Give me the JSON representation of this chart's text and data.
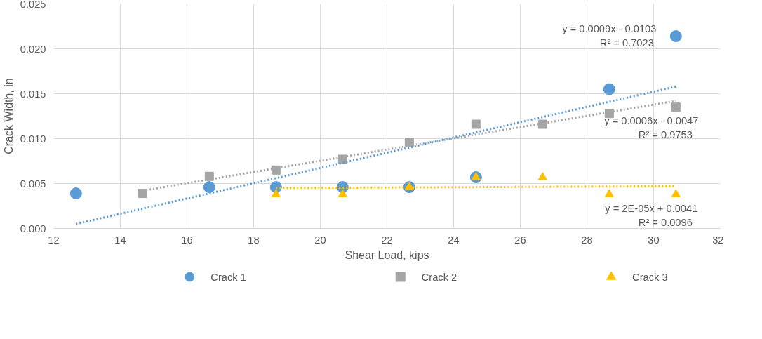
{
  "chart_data": {
    "type": "scatter",
    "xlabel": "Shear Load, kips",
    "ylabel": "Crack Width, in",
    "xlim": [
      12,
      32
    ],
    "xticks": [
      12,
      14,
      16,
      18,
      20,
      22,
      24,
      26,
      28,
      30,
      32
    ],
    "ylim": [
      0,
      0.025
    ],
    "yticks": [
      {
        "value": 0,
        "label": "0.000"
      },
      {
        "value": 0.005,
        "label": "0.005"
      },
      {
        "value": 0.01,
        "label": "0.010"
      },
      {
        "value": 0.015,
        "label": "0.015"
      },
      {
        "value": 0.02,
        "label": "0.020"
      },
      {
        "value": 0.025,
        "label": "0.025"
      }
    ],
    "grid": true,
    "legend": "bottom",
    "series": [
      {
        "name": "Crack 1",
        "color": "#5b9bd5",
        "marker": "circle",
        "x": [
          12.67,
          16.67,
          18.67,
          20.67,
          22.67,
          24.67,
          28.67,
          30.67
        ],
        "values": [
          0.0039,
          0.0046,
          0.0046,
          0.0046,
          0.0046,
          0.0057,
          0.0155,
          0.0214
        ]
      },
      {
        "name": "Crack 2",
        "color": "#a5a5a5",
        "marker": "square",
        "x": [
          14.67,
          16.67,
          18.67,
          20.67,
          22.67,
          24.67,
          26.67,
          28.67,
          30.67
        ],
        "values": [
          0.0039,
          0.0058,
          0.0065,
          0.0077,
          0.0096,
          0.0116,
          0.0116,
          0.0128,
          0.0135
        ]
      },
      {
        "name": "Crack 3",
        "color": "#ffc000",
        "marker": "triangle",
        "x": [
          18.67,
          20.67,
          22.67,
          24.67,
          26.67,
          28.67,
          30.67
        ],
        "values": [
          0.0038,
          0.0038,
          0.0046,
          0.0057,
          0.0057,
          0.0038,
          0.0038
        ]
      },
      {
        "type": "line",
        "color": "#5b9bd5",
        "line_style": "dotted",
        "x": [
          12.67,
          30.67
        ],
        "values": [
          0.0005,
          0.0158
        ]
      },
      {
        "type": "line",
        "color": "#a5a5a5",
        "line_style": "dotted",
        "x": [
          14.67,
          30.67
        ],
        "values": [
          0.0042,
          0.0142
        ]
      },
      {
        "type": "line",
        "color": "#ffc000",
        "line_style": "dotted",
        "x": [
          18.67,
          30.67
        ],
        "values": [
          0.0045,
          0.0047
        ]
      }
    ],
    "annotations": [
      "y = 0.0009x - 0.0103",
      "R² = 0.7023",
      "y = 0.0006x - 0.0047",
      "R² = 0.9753",
      "y = 2E-05x + 0.0041",
      "R² = 0.0096"
    ]
  }
}
